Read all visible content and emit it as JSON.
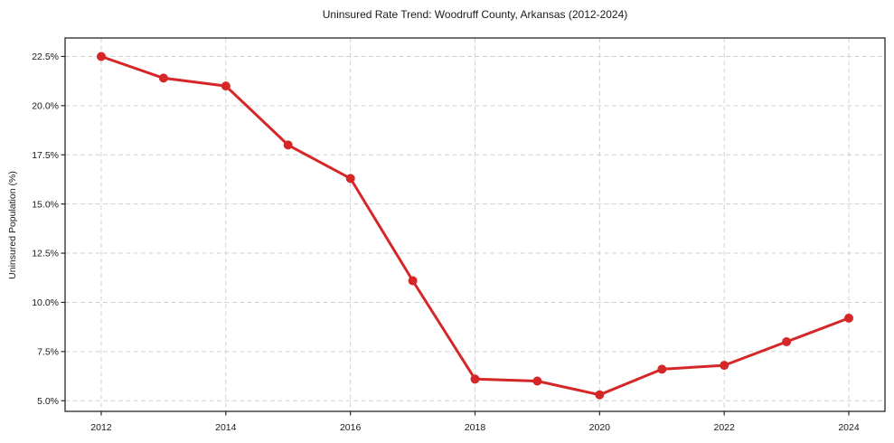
{
  "chart_data": {
    "type": "line",
    "title": "Uninsured Rate Trend: Woodruff County, Arkansas (2012-2024)",
    "xlabel": "",
    "ylabel": "Uninsured Population (%)",
    "x": [
      2012,
      2013,
      2014,
      2015,
      2016,
      2017,
      2018,
      2019,
      2020,
      2021,
      2022,
      2023,
      2024
    ],
    "values": [
      22.5,
      21.4,
      21.0,
      18.0,
      16.3,
      11.1,
      6.1,
      6.0,
      5.3,
      6.6,
      6.8,
      8.0,
      9.2
    ],
    "x_ticks": [
      2012,
      2014,
      2016,
      2018,
      2020,
      2022,
      2024
    ],
    "y_ticks": [
      5.0,
      7.5,
      10.0,
      12.5,
      15.0,
      17.5,
      20.0,
      22.5
    ],
    "y_tick_suffix": "%",
    "xlim": [
      2011.42,
      2024.58
    ],
    "ylim": [
      4.46,
      23.44
    ],
    "grid": true,
    "grid_style": "dashed",
    "legend": "none",
    "line_color": "#d62728",
    "marker_color": "#d62728",
    "grid_color": "#cfcfcf",
    "spine_color": "#262626",
    "text_color": "#1a1a1a",
    "background_color": "#ffffff"
  }
}
